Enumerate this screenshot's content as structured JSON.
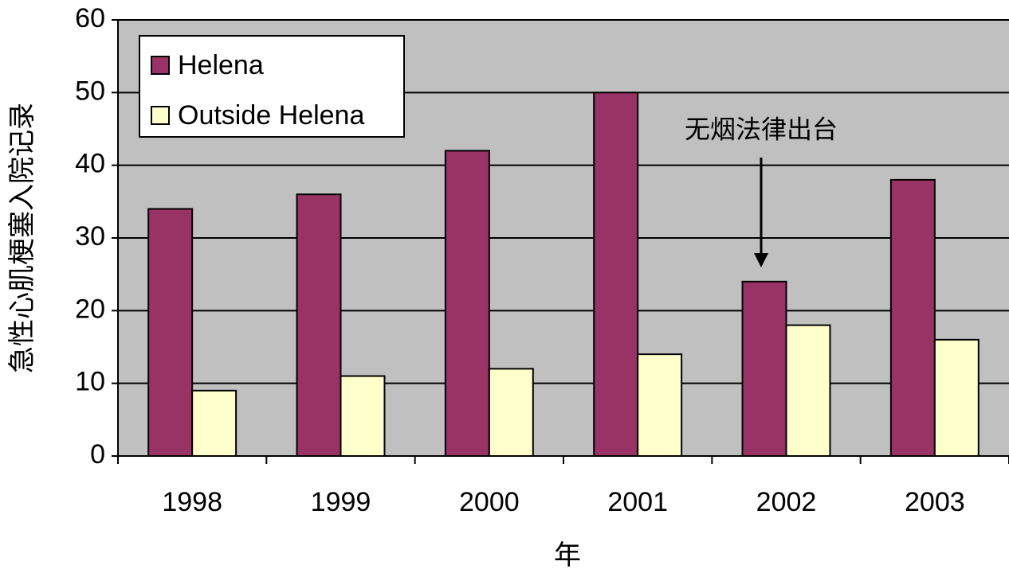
{
  "chart_data": {
    "type": "bar",
    "categories": [
      "1998",
      "1999",
      "2000",
      "2001",
      "2002",
      "2003"
    ],
    "series": [
      {
        "name": "Helena",
        "color": "#993366",
        "values": [
          34,
          36,
          42,
          50,
          24,
          38
        ]
      },
      {
        "name": "Outside Helena",
        "color": "#ffffcc",
        "values": [
          9,
          11,
          12,
          14,
          18,
          16
        ]
      }
    ],
    "ylim": [
      0,
      60
    ],
    "yticks": [
      0,
      10,
      20,
      30,
      40,
      50,
      60
    ],
    "grid": true,
    "xlabel": "年",
    "ylabel": "急性心肌梗塞入院记录",
    "annotation": "无烟法律出台",
    "legend": "upper left"
  }
}
